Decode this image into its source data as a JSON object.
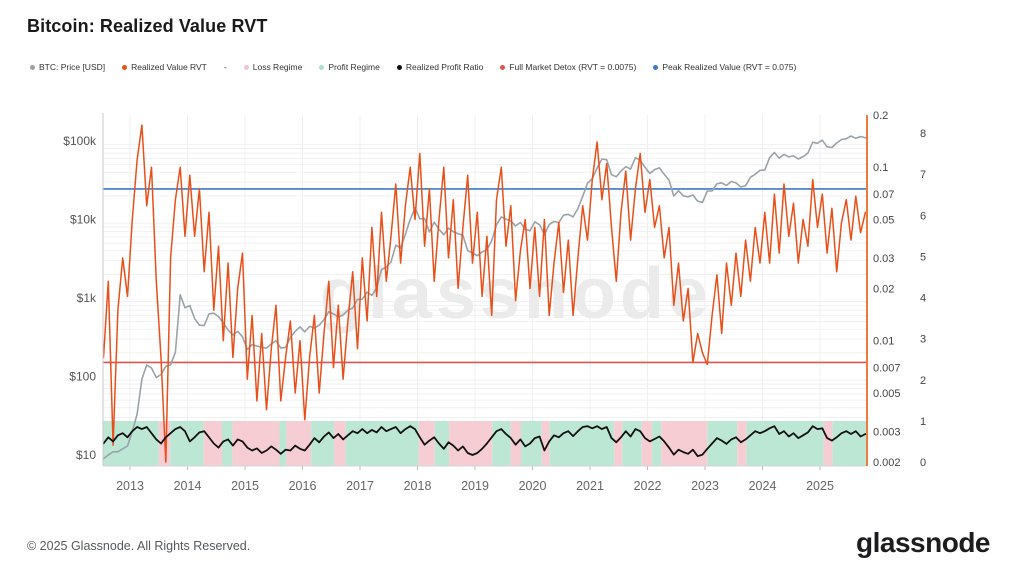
{
  "page": {
    "title": "Bitcoin: Realized Value RVT",
    "footer": "© 2025 Glassnode. All Rights Reserved.",
    "logo": "glassnode",
    "watermark": "glassnode"
  },
  "legend": {
    "items": [
      {
        "label": "BTC: Price [USD]",
        "color": "#9aa0a6",
        "marker": "dot"
      },
      {
        "label": "Realized Value RVT",
        "color": "#e8501a",
        "marker": "dot"
      },
      {
        "label": "-",
        "color": "",
        "marker": "none"
      },
      {
        "label": "Loss Regime",
        "color": "#f3c3cc",
        "marker": "dot"
      },
      {
        "label": "Profit Regime",
        "color": "#abe0cb",
        "marker": "dot"
      },
      {
        "label": "Realized Profit Ratio",
        "color": "#111111",
        "marker": "dot"
      },
      {
        "label": "Full Market Detox (RVT = 0.0075)",
        "color": "#e05353",
        "marker": "dot"
      },
      {
        "label": "Peak Realized Value (RVT = 0.075)",
        "color": "#3d78c9",
        "marker": "dot"
      }
    ]
  },
  "chart_data": {
    "type": "line",
    "title": "Bitcoin: Realized Value RVT",
    "x_start_year": 2012.54,
    "x_step_years": 0.0833333,
    "x_ticks": [
      2013,
      2014,
      2015,
      2016,
      2017,
      2018,
      2019,
      2020,
      2021,
      2022,
      2023,
      2024,
      2025
    ],
    "price_axis": {
      "scale": "log",
      "side": "left",
      "tick_labels": [
        "$100k",
        "$10k",
        "$1k",
        "$100",
        "$10"
      ],
      "tick_values": [
        100000,
        10000,
        1000,
        100,
        10
      ]
    },
    "rvt_axis": {
      "scale": "log",
      "side": "right",
      "tick_labels": [
        "0.2",
        "0.1",
        "0.07",
        "0.05",
        "0.03",
        "0.02",
        "0.01",
        "0.007",
        "0.005",
        "0.003",
        "0.002"
      ],
      "tick_values": [
        0.2,
        0.1,
        0.07,
        0.05,
        0.03,
        0.02,
        0.01,
        0.007,
        0.005,
        0.003,
        0.002
      ],
      "range": [
        0.002,
        0.2
      ],
      "axis_color": "#ef7b3b"
    },
    "ratio_axis": {
      "scale": "linear",
      "side": "far-right",
      "tick_labels": [
        "8",
        "7",
        "6",
        "5",
        "4",
        "3",
        "2",
        "1",
        "0"
      ],
      "tick_values": [
        8,
        7,
        6,
        5,
        4,
        3,
        2,
        1,
        0
      ]
    },
    "series": [
      {
        "name": "BTC: Price [USD]",
        "axis": "price",
        "color": "#9aa3a7",
        "values": [
          9,
          10,
          11,
          11,
          12,
          13,
          20,
          33,
          93,
          140,
          128,
          97,
          106,
          135,
          141,
          204,
          1100,
          750,
          800,
          550,
          450,
          445,
          630,
          640,
          580,
          480,
          390,
          340,
          375,
          320,
          220,
          255,
          245,
          235,
          230,
          260,
          285,
          230,
          235,
          315,
          375,
          430,
          370,
          435,
          415,
          450,
          530,
          670,
          625,
          575,
          610,
          700,
          745,
          960,
          965,
          1190,
          1080,
          1350,
          2300,
          2480,
          2875,
          4700,
          4340,
          6470,
          10000,
          14100,
          10200,
          10300,
          6930,
          9250,
          7500,
          6400,
          7750,
          7000,
          6600,
          6300,
          4020,
          3740,
          3460,
          3850,
          4100,
          5350,
          8560,
          10800,
          10100,
          9600,
          8300,
          9150,
          7550,
          7200,
          9350,
          8550,
          6440,
          8620,
          9450,
          9140,
          11350,
          11650,
          10780,
          13800,
          19700,
          29000,
          33100,
          45200,
          58800,
          57750,
          37300,
          35000,
          41500,
          47100,
          43800,
          61300,
          57000,
          46200,
          38500,
          43200,
          45500,
          37650,
          31800,
          19900,
          23300,
          20050,
          19400,
          20500,
          17100,
          16550,
          23100,
          23150,
          28500,
          29250,
          27200,
          30480,
          29230,
          25930,
          26970,
          34500,
          37700,
          42280,
          42580,
          61200,
          71300,
          60640,
          67500,
          62680,
          64600,
          58970,
          63300,
          70200,
          96400,
          93400,
          102400,
          84400,
          82550,
          94200,
          104600,
          107100,
          115800,
          108200,
          114000,
          110000
        ]
      },
      {
        "name": "Realized Value RVT",
        "axis": "rvt",
        "color": "#e8501a",
        "values": [
          0.008,
          0.022,
          0.0025,
          0.015,
          0.03,
          0.018,
          0.05,
          0.11,
          0.175,
          0.06,
          0.1,
          0.022,
          0.008,
          0.002,
          0.03,
          0.065,
          0.1,
          0.04,
          0.09,
          0.04,
          0.075,
          0.025,
          0.055,
          0.015,
          0.035,
          0.01,
          0.028,
          0.008,
          0.02,
          0.032,
          0.006,
          0.014,
          0.0045,
          0.011,
          0.004,
          0.009,
          0.016,
          0.0045,
          0.008,
          0.013,
          0.005,
          0.01,
          0.0035,
          0.008,
          0.014,
          0.005,
          0.011,
          0.022,
          0.007,
          0.016,
          0.006,
          0.013,
          0.025,
          0.009,
          0.03,
          0.013,
          0.045,
          0.018,
          0.055,
          0.022,
          0.04,
          0.08,
          0.028,
          0.06,
          0.1,
          0.05,
          0.12,
          0.035,
          0.075,
          0.022,
          0.05,
          0.1,
          0.03,
          0.065,
          0.02,
          0.045,
          0.09,
          0.028,
          0.055,
          0.018,
          0.04,
          0.014,
          0.065,
          0.1,
          0.035,
          0.06,
          0.017,
          0.033,
          0.05,
          0.02,
          0.045,
          0.018,
          0.05,
          0.014,
          0.028,
          0.048,
          0.019,
          0.038,
          0.014,
          0.03,
          0.06,
          0.038,
          0.085,
          0.14,
          0.065,
          0.105,
          0.045,
          0.022,
          0.055,
          0.095,
          0.038,
          0.075,
          0.12,
          0.055,
          0.085,
          0.045,
          0.06,
          0.03,
          0.045,
          0.016,
          0.028,
          0.013,
          0.02,
          0.0075,
          0.011,
          0.0085,
          0.0073,
          0.014,
          0.024,
          0.011,
          0.028,
          0.016,
          0.032,
          0.018,
          0.038,
          0.022,
          0.045,
          0.028,
          0.055,
          0.028,
          0.07,
          0.032,
          0.08,
          0.04,
          0.062,
          0.028,
          0.05,
          0.035,
          0.085,
          0.045,
          0.07,
          0.032,
          0.058,
          0.025,
          0.048,
          0.065,
          0.038,
          0.068,
          0.042,
          0.055
        ]
      },
      {
        "name": "Realized Profit Ratio",
        "axis": "ratio",
        "color": "#111111",
        "values": [
          0.45,
          0.6,
          0.5,
          0.65,
          0.7,
          0.6,
          0.75,
          0.85,
          0.8,
          0.85,
          0.7,
          0.55,
          0.45,
          0.6,
          0.7,
          0.8,
          0.85,
          0.75,
          0.5,
          0.6,
          0.72,
          0.75,
          0.6,
          0.45,
          0.35,
          0.5,
          0.55,
          0.4,
          0.55,
          0.5,
          0.35,
          0.28,
          0.33,
          0.22,
          0.28,
          0.38,
          0.3,
          0.2,
          0.3,
          0.28,
          0.4,
          0.32,
          0.28,
          0.42,
          0.58,
          0.48,
          0.62,
          0.72,
          0.58,
          0.68,
          0.55,
          0.65,
          0.75,
          0.7,
          0.8,
          0.7,
          0.78,
          0.72,
          0.85,
          0.75,
          0.8,
          0.85,
          0.7,
          0.8,
          0.87,
          0.8,
          0.6,
          0.42,
          0.52,
          0.6,
          0.45,
          0.32,
          0.48,
          0.4,
          0.28,
          0.38,
          0.22,
          0.17,
          0.22,
          0.32,
          0.45,
          0.6,
          0.75,
          0.8,
          0.68,
          0.58,
          0.42,
          0.55,
          0.38,
          0.45,
          0.58,
          0.62,
          0.28,
          0.5,
          0.65,
          0.6,
          0.7,
          0.75,
          0.63,
          0.75,
          0.85,
          0.87,
          0.82,
          0.87,
          0.8,
          0.85,
          0.58,
          0.48,
          0.6,
          0.75,
          0.62,
          0.8,
          0.75,
          0.58,
          0.5,
          0.56,
          0.62,
          0.5,
          0.35,
          0.18,
          0.3,
          0.24,
          0.2,
          0.3,
          0.14,
          0.18,
          0.32,
          0.45,
          0.58,
          0.52,
          0.44,
          0.55,
          0.6,
          0.48,
          0.55,
          0.65,
          0.75,
          0.7,
          0.75,
          0.82,
          0.87,
          0.68,
          0.75,
          0.62,
          0.7,
          0.58,
          0.65,
          0.72,
          0.87,
          0.8,
          0.82,
          0.58,
          0.52,
          0.6,
          0.7,
          0.75,
          0.68,
          0.75,
          0.62,
          0.68
        ]
      }
    ],
    "hlines": [
      {
        "name": "Peak Realized Value (RVT = 0.075)",
        "axis": "rvt",
        "value": 0.075,
        "color": "#3d78c9"
      },
      {
        "name": "Full Market Detox (RVT = 0.0075)",
        "axis": "rvt",
        "value": 0.0075,
        "color": "#e05353"
      }
    ],
    "regimes": [
      [
        2012.53,
        2013.5,
        "profit"
      ],
      [
        2013.5,
        2013.7,
        "loss"
      ],
      [
        2013.7,
        2014.28,
        "profit"
      ],
      [
        2014.28,
        2014.6,
        "loss"
      ],
      [
        2014.6,
        2014.78,
        "profit"
      ],
      [
        2014.78,
        2015.6,
        "loss"
      ],
      [
        2015.6,
        2015.72,
        "profit"
      ],
      [
        2015.72,
        2016.15,
        "loss"
      ],
      [
        2016.15,
        2016.55,
        "profit"
      ],
      [
        2016.55,
        2016.75,
        "loss"
      ],
      [
        2016.75,
        2018.02,
        "profit"
      ],
      [
        2018.02,
        2018.3,
        "loss"
      ],
      [
        2018.3,
        2018.55,
        "profit"
      ],
      [
        2018.55,
        2019.3,
        "loss"
      ],
      [
        2019.3,
        2019.62,
        "profit"
      ],
      [
        2019.62,
        2019.8,
        "loss"
      ],
      [
        2019.8,
        2020.16,
        "profit"
      ],
      [
        2020.16,
        2020.3,
        "loss"
      ],
      [
        2020.3,
        2021.42,
        "profit"
      ],
      [
        2021.42,
        2021.56,
        "loss"
      ],
      [
        2021.56,
        2021.9,
        "profit"
      ],
      [
        2021.9,
        2022.08,
        "loss"
      ],
      [
        2022.08,
        2022.24,
        "profit"
      ],
      [
        2022.24,
        2023.04,
        "loss"
      ],
      [
        2023.04,
        2023.56,
        "profit"
      ],
      [
        2023.56,
        2023.72,
        "loss"
      ],
      [
        2023.72,
        2025.06,
        "profit"
      ],
      [
        2025.06,
        2025.22,
        "loss"
      ],
      [
        2025.22,
        2025.8,
        "profit"
      ]
    ],
    "regime_colors": {
      "profit": "#bce7d5",
      "loss": "#f6cdd3"
    },
    "grid": "minor-log-horizontal"
  }
}
